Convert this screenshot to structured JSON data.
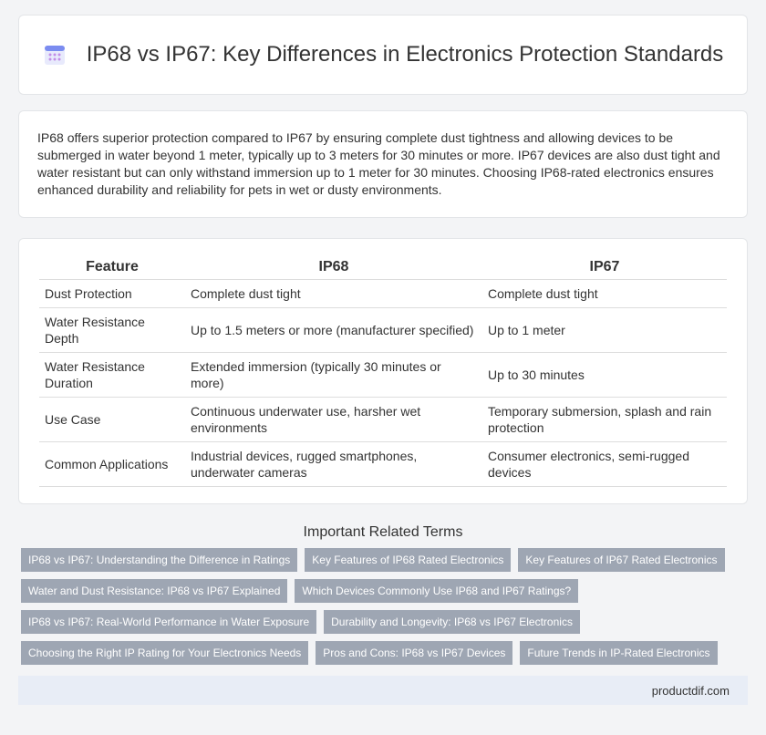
{
  "header": {
    "title": "IP68 vs IP67: Key Differences in Electronics Protection Standards"
  },
  "intro": "IP68 offers superior protection compared to IP67 by ensuring complete dust tightness and allowing devices to be submerged in water beyond 1 meter, typically up to 3 meters for 30 minutes or more. IP67 devices are also dust tight and water resistant but can only withstand immersion up to 1 meter for 30 minutes. Choosing IP68-rated electronics ensures enhanced durability and reliability for pets in wet or dusty environments.",
  "table": {
    "headers": [
      "Feature",
      "IP68",
      "IP67"
    ],
    "rows": [
      [
        "Dust Protection",
        "Complete dust tight",
        "Complete dust tight"
      ],
      [
        "Water Resistance Depth",
        "Up to 1.5 meters or more (manufacturer specified)",
        "Up to 1 meter"
      ],
      [
        "Water Resistance Duration",
        "Extended immersion (typically 30 minutes or more)",
        "Up to 30 minutes"
      ],
      [
        "Use Case",
        "Continuous underwater use, harsher wet environments",
        "Temporary submersion, splash and rain protection"
      ],
      [
        "Common Applications",
        "Industrial devices, rugged smartphones, underwater cameras",
        "Consumer electronics, semi-rugged devices"
      ]
    ]
  },
  "related": {
    "title": "Important Related Terms",
    "tags": [
      "IP68 vs IP67: Understanding the Difference in Ratings",
      "Key Features of IP68 Rated Electronics",
      "Key Features of IP67 Rated Electronics",
      "Water and Dust Resistance: IP68 vs IP67 Explained",
      "Which Devices Commonly Use IP68 and IP67 Ratings?",
      "IP68 vs IP67: Real-World Performance in Water Exposure",
      "Durability and Longevity: IP68 vs IP67 Electronics",
      "Choosing the Right IP Rating for Your Electronics Needs",
      "Pros and Cons: IP68 vs IP67 Devices",
      "Future Trends in IP-Rated Electronics"
    ]
  },
  "footer": {
    "site": "productdif.com"
  }
}
